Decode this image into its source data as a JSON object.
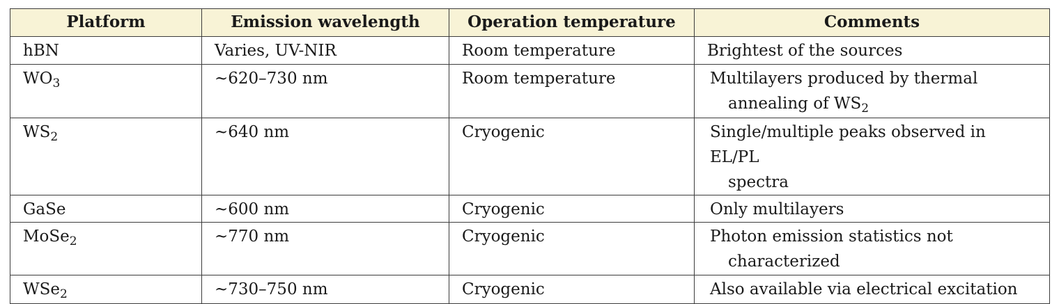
{
  "table": {
    "headers": [
      "Platform",
      "Emission wavelength",
      "Operation temperature",
      "Comments"
    ],
    "rows": [
      {
        "platform": "hBN",
        "platform_sub": "",
        "wavelength": "Varies, UV-NIR",
        "temperature": "Room temperature",
        "comment_line1": "Brightest of the sources",
        "comment_line2_pre": "",
        "comment_line2_sub": ""
      },
      {
        "platform": "WO",
        "platform_sub": "3",
        "wavelength": "~620–730 nm",
        "temperature": "Room temperature",
        "comment_line1": "Multilayers produced by thermal",
        "comment_line2_pre": "annealing of WS",
        "comment_line2_sub": "2"
      },
      {
        "platform": "WS",
        "platform_sub": "2",
        "wavelength": "~640 nm",
        "temperature": "Cryogenic",
        "comment_line1": "Single/multiple peaks observed in EL/PL",
        "comment_line2_pre": "spectra",
        "comment_line2_sub": ""
      },
      {
        "platform": "GaSe",
        "platform_sub": "",
        "wavelength": "~600 nm",
        "temperature": "Cryogenic",
        "comment_line1": "Only multilayers",
        "comment_line2_pre": "",
        "comment_line2_sub": ""
      },
      {
        "platform": "MoSe",
        "platform_sub": "2",
        "wavelength": "~770 nm",
        "temperature": "Cryogenic",
        "comment_line1": "Photon emission statistics not",
        "comment_line2_pre": "characterized",
        "comment_line2_sub": ""
      },
      {
        "platform": "WSe",
        "platform_sub": "2",
        "wavelength": "~730–750 nm",
        "temperature": "Cryogenic",
        "comment_line1": "Also available via electrical excitation",
        "comment_line2_pre": "",
        "comment_line2_sub": ""
      }
    ]
  }
}
